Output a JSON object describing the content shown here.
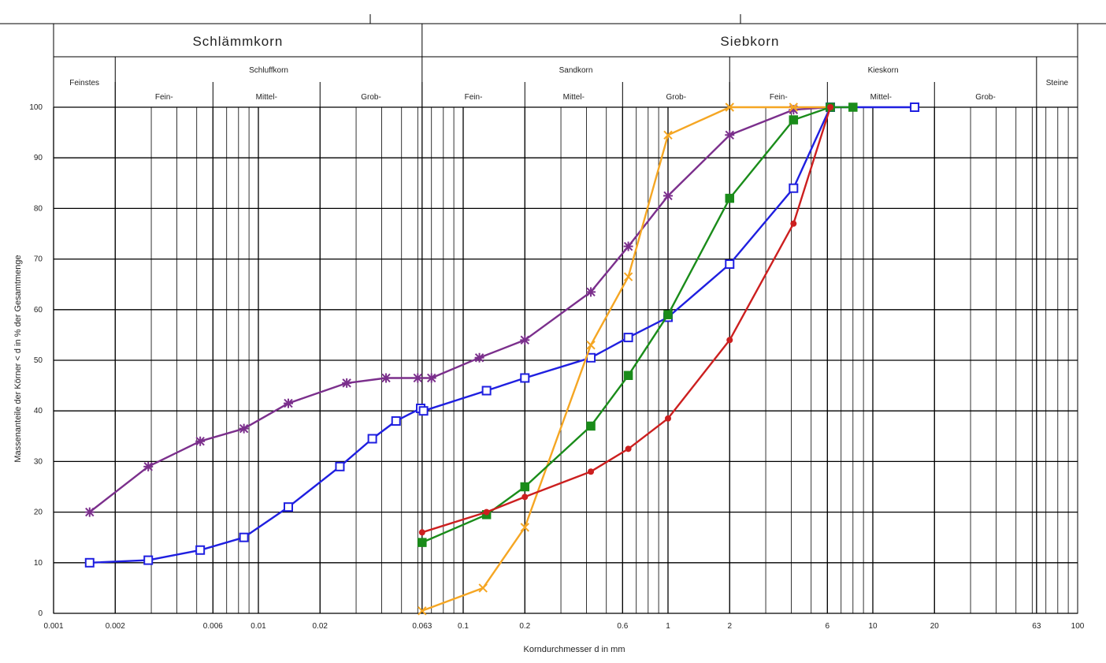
{
  "chart_data": {
    "type": "line",
    "xscale": "log",
    "xlim": [
      0.001,
      100
    ],
    "ylim": [
      0,
      100
    ],
    "xlabel": "Korndurchmesser d in mm",
    "ylabel": "Massenanteile der Körner < d in % der Gesamtmenge",
    "grid": true,
    "x_ticks": [
      {
        "value": 0.001,
        "label": "0.001"
      },
      {
        "value": 0.002,
        "label": "0.002"
      },
      {
        "value": 0.006,
        "label": "0.006"
      },
      {
        "value": 0.01,
        "label": "0.01"
      },
      {
        "value": 0.02,
        "label": "0.02"
      },
      {
        "value": 0.063,
        "label": "0.063"
      },
      {
        "value": 0.1,
        "label": "0.1"
      },
      {
        "value": 0.2,
        "label": "0.2"
      },
      {
        "value": 0.6,
        "label": "0.6"
      },
      {
        "value": 1,
        "label": "1"
      },
      {
        "value": 2,
        "label": "2"
      },
      {
        "value": 6,
        "label": "6"
      },
      {
        "value": 10,
        "label": "10"
      },
      {
        "value": 20,
        "label": "20"
      },
      {
        "value": 63,
        "label": "63"
      },
      {
        "value": 100,
        "label": "100"
      }
    ],
    "y_ticks": [
      0,
      10,
      20,
      30,
      40,
      50,
      60,
      70,
      80,
      90,
      100
    ],
    "header": {
      "top": [
        {
          "label": "Schlämmkorn",
          "from": 0.001,
          "to": 0.063
        },
        {
          "label": "Siebkorn",
          "from": 0.063,
          "to": 100
        }
      ],
      "groups": [
        {
          "label": "Feinstes",
          "from": 0.001,
          "to": 0.002
        },
        {
          "label": "Schluffkorn",
          "from": 0.002,
          "to": 0.063
        },
        {
          "label": "Sandkorn",
          "from": 0.063,
          "to": 2
        },
        {
          "label": "Kieskorn",
          "from": 2,
          "to": 63
        },
        {
          "label": "Steine",
          "from": 63,
          "to": 100
        }
      ],
      "subgroups": [
        {
          "label": "Fein-",
          "from": 0.002,
          "to": 0.006
        },
        {
          "label": "Mittel-",
          "from": 0.006,
          "to": 0.02
        },
        {
          "label": "Grob-",
          "from": 0.02,
          "to": 0.063
        },
        {
          "label": "Fein-",
          "from": 0.063,
          "to": 0.2
        },
        {
          "label": "Mittel-",
          "from": 0.2,
          "to": 0.6
        },
        {
          "label": "Grob-",
          "from": 0.6,
          "to": 2
        },
        {
          "label": "Fein-",
          "from": 2,
          "to": 6
        },
        {
          "label": "Mittel-",
          "from": 6,
          "to": 20
        },
        {
          "label": "Grob-",
          "from": 20,
          "to": 63
        }
      ]
    },
    "series": [
      {
        "color": "#7b2f8c",
        "marker": "star",
        "points": [
          [
            0.0015,
            20
          ],
          [
            0.0029,
            29
          ],
          [
            0.0052,
            34
          ],
          [
            0.0085,
            36.5
          ],
          [
            0.014,
            41.5
          ],
          [
            0.027,
            45.5
          ],
          [
            0.042,
            46.5
          ],
          [
            0.06,
            46.5
          ],
          [
            0.07,
            46.5
          ],
          [
            0.12,
            50.5
          ],
          [
            0.2,
            54
          ],
          [
            0.42,
            63.5
          ],
          [
            0.64,
            72.5
          ],
          [
            1.0,
            82.5
          ],
          [
            2.0,
            94.5
          ],
          [
            4.1,
            99.5
          ],
          [
            6.2,
            100
          ]
        ]
      },
      {
        "color": "#1f1fe0",
        "marker": "square",
        "points": [
          [
            0.0015,
            10
          ],
          [
            0.0029,
            10.5
          ],
          [
            0.0052,
            12.5
          ],
          [
            0.0085,
            15
          ],
          [
            0.014,
            21
          ],
          [
            0.025,
            29
          ],
          [
            0.036,
            34.5
          ],
          [
            0.047,
            38
          ],
          [
            0.062,
            40.5
          ],
          [
            0.064,
            40
          ],
          [
            0.13,
            44
          ],
          [
            0.2,
            46.5
          ],
          [
            0.42,
            50.5
          ],
          [
            0.64,
            54.5
          ],
          [
            1.0,
            58.5
          ],
          [
            2.0,
            69
          ],
          [
            4.1,
            84
          ],
          [
            6.2,
            100
          ],
          [
            16,
            100
          ]
        ]
      },
      {
        "color": "#f5a623",
        "marker": "x",
        "points": [
          [
            0.063,
            0.5
          ],
          [
            0.125,
            5
          ],
          [
            0.2,
            17
          ],
          [
            0.42,
            53
          ],
          [
            0.64,
            66.5
          ],
          [
            1.0,
            94.5
          ],
          [
            2.0,
            100
          ],
          [
            4.1,
            100
          ],
          [
            6.2,
            100
          ]
        ]
      },
      {
        "color": "#1a8c1a",
        "marker": "filled-square",
        "points": [
          [
            0.063,
            14
          ],
          [
            0.13,
            19.5
          ],
          [
            0.2,
            25
          ],
          [
            0.42,
            37
          ],
          [
            0.64,
            47
          ],
          [
            1.0,
            59
          ],
          [
            2.0,
            82
          ],
          [
            4.1,
            97.5
          ],
          [
            6.2,
            100
          ],
          [
            8,
            100
          ]
        ]
      },
      {
        "color": "#cc1f1f",
        "marker": "dot",
        "points": [
          [
            0.063,
            16
          ],
          [
            0.13,
            20
          ],
          [
            0.2,
            23
          ],
          [
            0.42,
            28
          ],
          [
            0.64,
            32.5
          ],
          [
            1.0,
            38.5
          ],
          [
            2.0,
            54
          ],
          [
            4.1,
            77
          ],
          [
            6.2,
            100
          ]
        ]
      }
    ]
  }
}
